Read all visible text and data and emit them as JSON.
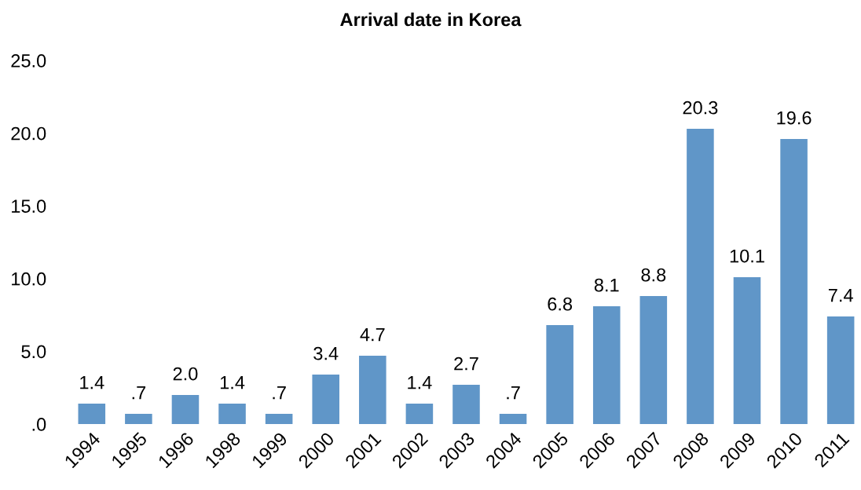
{
  "chart_data": {
    "type": "bar",
    "title": "Arrival date in Korea",
    "categories": [
      "1994",
      "1995",
      "1996",
      "1998",
      "1999",
      "2000",
      "2001",
      "2002",
      "2003",
      "2004",
      "2005",
      "2006",
      "2007",
      "2008",
      "2009",
      "2010",
      "2011"
    ],
    "values": [
      1.4,
      0.7,
      2.0,
      1.4,
      0.7,
      3.4,
      4.7,
      1.4,
      2.7,
      0.7,
      6.8,
      8.1,
      8.8,
      20.3,
      10.1,
      19.6,
      7.4
    ],
    "value_labels": [
      "1.4",
      ".7",
      "2.0",
      "1.4",
      ".7",
      "3.4",
      "4.7",
      "1.4",
      "2.7",
      ".7",
      "6.8",
      "8.1",
      "8.8",
      "20.3",
      "10.1",
      "19.6",
      "7.4"
    ],
    "color": "#6096c8",
    "ylim": [
      0,
      25
    ],
    "yticks": [
      {
        "value": 0,
        "label": ".0"
      },
      {
        "value": 5,
        "label": "5.0"
      },
      {
        "value": 10,
        "label": "10.0"
      },
      {
        "value": 15,
        "label": "15.0"
      },
      {
        "value": 20,
        "label": "20.0"
      },
      {
        "value": 25,
        "label": "25.0"
      }
    ],
    "grid": false,
    "legend": false
  }
}
